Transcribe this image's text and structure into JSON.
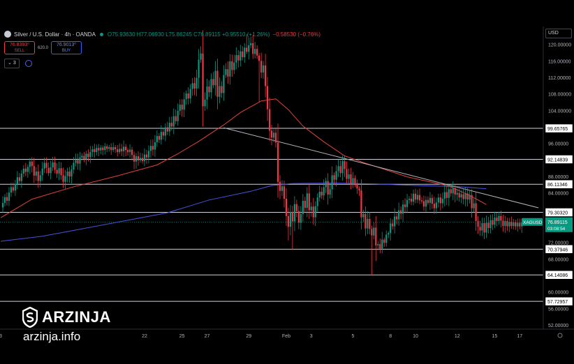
{
  "header": {
    "title": "Silver / U.S. Dollar · 4h · OANDA",
    "ohlc": "O75.93630 H77.06930 L75.86245 C76.89115 +0.95510 (+1.26%)",
    "extra_change": "−0.58530 (−0.76%)"
  },
  "trade": {
    "sell_price": "76.8393⁰",
    "sell_label": "SELL",
    "spread": "620.0",
    "buy_price": "76.9013⁰",
    "buy_label": "BUY"
  },
  "indicators": {
    "count": "3"
  },
  "currency": "USD",
  "watermark": {
    "name": "ARZINJA",
    "url": "arzinja.info"
  },
  "colors": {
    "bull": "#089981",
    "bear": "#f23645",
    "ma_red": "#e0443b",
    "ma_blue": "#4a52e0",
    "level": "#d1d4dc",
    "trend": "#b2b5be",
    "price_tag": "#089981"
  },
  "chart_data": {
    "type": "candlestick",
    "symbol_tag": "XAGUSD",
    "ylim": [
      51,
      124
    ],
    "y_ticks": [
      {
        "v": 52,
        "label": "52.00000"
      },
      {
        "v": 56,
        "label": "56.00000"
      },
      {
        "v": 60,
        "label": "60.00000"
      },
      {
        "v": 64,
        "label": "64.00000"
      },
      {
        "v": 68,
        "label": "68.00000"
      },
      {
        "v": 72,
        "label": "72.00000"
      },
      {
        "v": 76,
        "label": "76.00000"
      },
      {
        "v": 80,
        "label": "80.00000"
      },
      {
        "v": 84,
        "label": "84.00000"
      },
      {
        "v": 88,
        "label": "88.00000"
      },
      {
        "v": 92,
        "label": "92.00000"
      },
      {
        "v": 96,
        "label": "96.00000"
      },
      {
        "v": 100,
        "label": "100.00000"
      },
      {
        "v": 104,
        "label": "104.00000"
      },
      {
        "v": 108,
        "label": "108.00000"
      },
      {
        "v": 112,
        "label": "112.00000"
      },
      {
        "v": 116,
        "label": "116.00000"
      },
      {
        "v": 120,
        "label": "120.00000"
      }
    ],
    "x_ticks": [
      {
        "i": 0,
        "label": "3"
      },
      {
        "i": 69,
        "label": "22"
      },
      {
        "i": 87,
        "label": "25"
      },
      {
        "i": 99,
        "label": "27"
      },
      {
        "i": 119,
        "label": "29"
      },
      {
        "i": 137,
        "label": "Feb"
      },
      {
        "i": 149,
        "label": "3"
      },
      {
        "i": 169,
        "label": "5"
      },
      {
        "i": 187,
        "label": "8"
      },
      {
        "i": 199,
        "label": "10"
      },
      {
        "i": 219,
        "label": "12"
      },
      {
        "i": 237,
        "label": "15"
      },
      {
        "i": 249,
        "label": "17"
      }
    ],
    "levels": [
      {
        "label": "99.65765",
        "v": 99.65765
      },
      {
        "label": "92.14839",
        "v": 92.14839
      },
      {
        "label": "86.11346",
        "v": 86.11346
      },
      {
        "label": "79.30320",
        "v": 79.3032
      },
      {
        "label": "70.37946",
        "v": 70.37946
      },
      {
        "label": "64.14086",
        "v": 64.14086
      },
      {
        "label": "57.72957",
        "v": 57.72957
      }
    ],
    "last_price": {
      "v": 76.89115,
      "label": "76.89115",
      "countdown": "03:08:54"
    },
    "trendline": [
      [
        107,
        99.8
      ],
      [
        258,
        80.4
      ]
    ],
    "closes": [
      80.5,
      81.6,
      83.0,
      82.1,
      84.1,
      85.4,
      84.6,
      86.2,
      87.8,
      86.9,
      88.7,
      89.9,
      89.1,
      90.3,
      91.6,
      90.5,
      88.2,
      89.2,
      86.9,
      88.3,
      89.9,
      91.3,
      90.1,
      88.8,
      90.2,
      91.4,
      89.6,
      88.7,
      90.0,
      88.3,
      86.7,
      88.1,
      89.2,
      88.0,
      89.7,
      91.3,
      92.0,
      91.1,
      92.6,
      93.0,
      92.2,
      93.5,
      92.7,
      93.9,
      94.6,
      93.9,
      94.9,
      94.3,
      95.0,
      94.4,
      95.3,
      94.7,
      95.1,
      94.4,
      95.1,
      94.6,
      93.9,
      94.7,
      94.1,
      95.2,
      94.4,
      93.9,
      94.5,
      93.2,
      91.6,
      92.9,
      91.9,
      92.5,
      91.7,
      93.3,
      92.6,
      94.2,
      95.4,
      94.5,
      96.3,
      97.8,
      96.9,
      98.8,
      97.9,
      99.9,
      98.9,
      101.0,
      100.1,
      102.6,
      101.4,
      103.9,
      105.4,
      104.2,
      106.7,
      108.1,
      106.9,
      109.2,
      110.6,
      109.3,
      111.9,
      116.3,
      117.8,
      105.0,
      106.6,
      109.8,
      108.4,
      111.6,
      110.1,
      113.6,
      107.3,
      109.9,
      108.2,
      112.6,
      114.0,
      112.2,
      115.9,
      113.8,
      115.6,
      117.4,
      116.1,
      118.3,
      116.9,
      119.2,
      118.2,
      119.8,
      120.3,
      117.7,
      118.9,
      117.3,
      116.0,
      113.2,
      114.9,
      109.9,
      104.3,
      99.1,
      97.4,
      98.6,
      96.2,
      86.7,
      84.5,
      85.6,
      82.6,
      78.4,
      75.8,
      79.4,
      77.1,
      81.3,
      79.6,
      76.8,
      78.9,
      82.1,
      80.4,
      83.9,
      79.8,
      80.7,
      78.1,
      80.8,
      82.9,
      84.3,
      83.4,
      85.4,
      86.9,
      83.6,
      84.9,
      88.3,
      87.2,
      89.3,
      90.5,
      88.8,
      91.7,
      89.8,
      87.4,
      88.5,
      86.1,
      87.6,
      86.3,
      85.1,
      84.6,
      78.1,
      78.9,
      75.4,
      77.7,
      75.3,
      73.7,
      75.6,
      71.3,
      71.6,
      70.5,
      72.7,
      71.9,
      73.9,
      74.3,
      76.6,
      75.9,
      78.3,
      77.6,
      79.8,
      79.0,
      81.2,
      80.6,
      82.3,
      82.6,
      81.9,
      83.8,
      82.4,
      83.5,
      82.2,
      82.0,
      80.7,
      82.3,
      81.6,
      82.8,
      81.4,
      80.3,
      81.7,
      82.9,
      81.5,
      82.6,
      84.2,
      82.8,
      84.9,
      83.9,
      85.2,
      83.6,
      84.0,
      82.9,
      83.7,
      82.5,
      83.9,
      82.4,
      83.5,
      80.3,
      81.5,
      77.2,
      75.8,
      74.9,
      76.7,
      74.4,
      76.8,
      75.5,
      77.4,
      76.3,
      78.0,
      77.2,
      78.4,
      77.3,
      76.0,
      77.2,
      75.9,
      77.0,
      76.0,
      76.9,
      75.9,
      76.8,
      75.9,
      76.89
    ],
    "series": [
      {
        "kind": "ma",
        "points": [
          [
            0,
            72.3
          ],
          [
            20,
            73.5
          ],
          [
            40,
            75.4
          ],
          [
            60,
            77.3
          ],
          [
            80,
            79.2
          ],
          [
            100,
            82.3
          ],
          [
            120,
            84.4
          ],
          [
            130,
            85.8
          ],
          [
            140,
            86.3
          ],
          [
            160,
            86.4
          ],
          [
            180,
            86.2
          ],
          [
            200,
            85.8
          ],
          [
            220,
            85.5
          ],
          [
            233,
            85.0
          ]
        ]
      },
      {
        "kind": "ma",
        "points": [
          [
            0,
            78.0
          ],
          [
            15,
            82.5
          ],
          [
            35,
            85.5
          ],
          [
            55,
            88.0
          ],
          [
            75,
            90.8
          ],
          [
            85,
            93.5
          ],
          [
            95,
            96.5
          ],
          [
            107,
            100.5
          ],
          [
            115,
            103.5
          ],
          [
            125,
            106.3
          ],
          [
            132,
            106.8
          ],
          [
            138,
            104.2
          ],
          [
            145,
            100.2
          ],
          [
            155,
            96.4
          ],
          [
            165,
            93.0
          ],
          [
            175,
            91.2
          ],
          [
            185,
            89.6
          ],
          [
            195,
            87.9
          ],
          [
            205,
            86.8
          ],
          [
            215,
            85.7
          ],
          [
            225,
            83.4
          ],
          [
            233,
            81.2
          ]
        ]
      }
    ]
  }
}
